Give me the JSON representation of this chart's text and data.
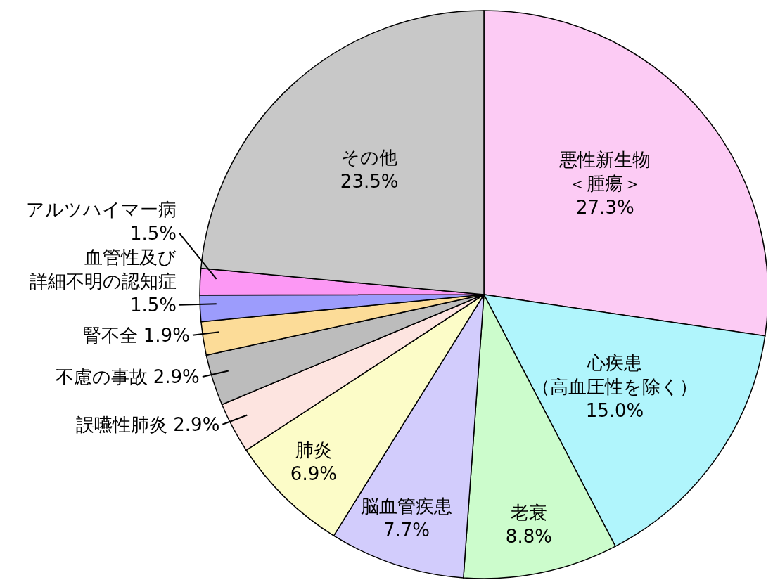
{
  "chart_data": {
    "type": "pie",
    "categories": [
      "悪性新生物＜腫瘍＞",
      "心疾患（高血圧性を除く）",
      "老衰",
      "脳血管疾患",
      "肺炎",
      "誤嚥性肺炎",
      "不慮の事故",
      "腎不全",
      "血管性及び詳細不明の認知症",
      "アルツハイマー病",
      "その他"
    ],
    "values": [
      27.3,
      15.0,
      8.8,
      7.7,
      6.9,
      2.9,
      2.9,
      1.9,
      1.5,
      1.5,
      23.5
    ],
    "value_labels": [
      "27.3%",
      "15.0%",
      "8.8%",
      "7.7%",
      "6.9%",
      "2.9%",
      "2.9%",
      "1.9%",
      "1.5%",
      "1.5%",
      "23.5%"
    ],
    "colors": [
      "#fccbf4",
      "#b0f5fc",
      "#ccfccc",
      "#d2ccfc",
      "#fcfcc8",
      "#fde4e0",
      "#bcbcbc",
      "#fcdc98",
      "#9c9cfc",
      "#fc98f4",
      "#c8c8c8"
    ]
  }
}
